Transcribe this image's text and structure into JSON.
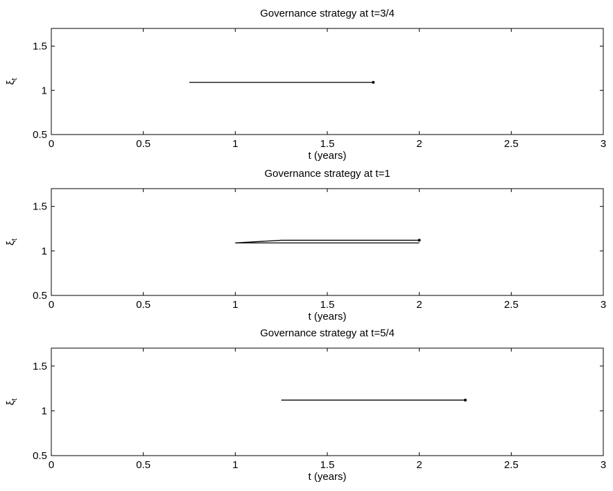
{
  "chart_data": [
    {
      "type": "line",
      "title": "Governance strategy at t=3/4",
      "xlabel": "t (years)",
      "ylabel": "ξ",
      "ylabel_subscript": "t",
      "xlim": [
        0,
        3
      ],
      "ylim": [
        0.5,
        1.7
      ],
      "xticks": [
        0,
        0.5,
        1,
        1.5,
        2,
        2.5,
        3
      ],
      "xtick_labels": [
        "0",
        "0.5",
        "1",
        "1.5",
        "2",
        "2.5",
        "3"
      ],
      "yticks": [
        0.5,
        1,
        1.5
      ],
      "ytick_labels": [
        "0.5",
        "1",
        "1.5"
      ],
      "grid": false,
      "series": [
        {
          "x": [
            0.75,
            1.75
          ],
          "y": [
            1.09,
            1.09
          ],
          "end_marker": true
        }
      ]
    },
    {
      "type": "line",
      "title": "Governance strategy at t=1",
      "xlabel": "t (years)",
      "ylabel": "ξ",
      "ylabel_subscript": "t",
      "xlim": [
        0,
        3
      ],
      "ylim": [
        0.5,
        1.7
      ],
      "xticks": [
        0,
        0.5,
        1,
        1.5,
        2,
        2.5,
        3
      ],
      "xtick_labels": [
        "0",
        "0.5",
        "1",
        "1.5",
        "2",
        "2.5",
        "3"
      ],
      "yticks": [
        0.5,
        1,
        1.5
      ],
      "ytick_labels": [
        "0.5",
        "1",
        "1.5"
      ],
      "grid": false,
      "series": [
        {
          "x": [
            1,
            2
          ],
          "y": [
            1.09,
            1.09
          ],
          "end_marker": false
        },
        {
          "x": [
            1,
            1.25,
            2
          ],
          "y": [
            1.09,
            1.12,
            1.12
          ],
          "end_marker": true
        }
      ]
    },
    {
      "type": "line",
      "title": "Governance strategy at t=5/4",
      "xlabel": "t (years)",
      "ylabel": "ξ",
      "ylabel_subscript": "t",
      "xlim": [
        0,
        3
      ],
      "ylim": [
        0.5,
        1.7
      ],
      "xticks": [
        0,
        0.5,
        1,
        1.5,
        2,
        2.5,
        3
      ],
      "xtick_labels": [
        "0",
        "0.5",
        "1",
        "1.5",
        "2",
        "2.5",
        "3"
      ],
      "yticks": [
        0.5,
        1,
        1.5
      ],
      "ytick_labels": [
        "0.5",
        "1",
        "1.5"
      ],
      "grid": false,
      "series": [
        {
          "x": [
            1.25,
            2.25
          ],
          "y": [
            1.12,
            1.12
          ],
          "end_marker": true
        }
      ]
    }
  ]
}
